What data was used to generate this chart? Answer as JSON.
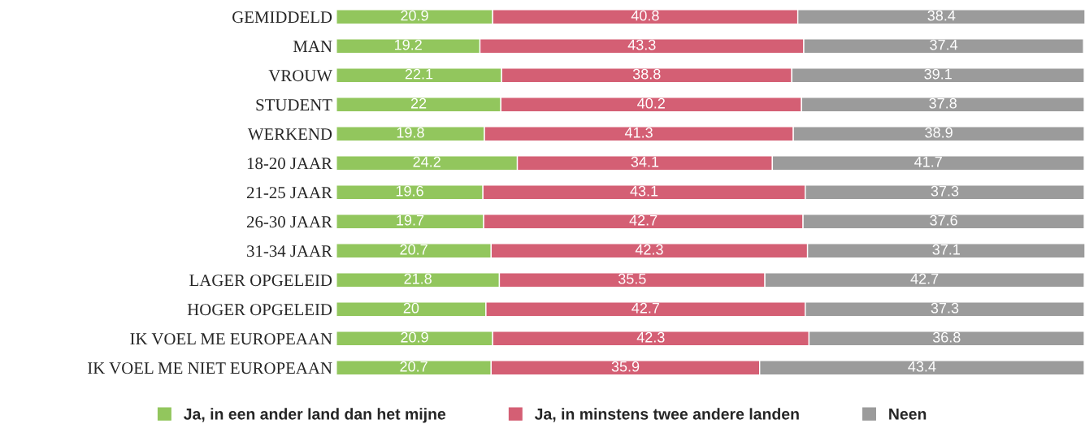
{
  "chart_data": {
    "type": "bar",
    "orientation": "horizontal",
    "stacked": true,
    "data_labels": true,
    "legend": "bottom",
    "grid": false,
    "categories": [
      "GEMIDDELD",
      "MAN",
      "VROUW",
      "STUDENT",
      "WERKEND",
      "18-20 JAAR",
      "21-25 JAAR",
      "26-30 JAAR",
      "31-34 JAAR",
      "LAGER OPGELEID",
      "HOGER OPGELEID",
      "IK VOEL ME EUROPEAAN",
      "IK VOEL ME NIET EUROPEAAN"
    ],
    "series": [
      {
        "name": "Ja, in een ander land dan het mijne",
        "color": "#92c65d",
        "values": [
          20.9,
          19.2,
          22.1,
          22,
          19.8,
          24.2,
          19.6,
          19.7,
          20.7,
          21.8,
          20,
          20.9,
          20.7
        ]
      },
      {
        "name": "Ja, in minstens twee andere landen",
        "color": "#d45f74",
        "values": [
          40.8,
          43.3,
          38.8,
          40.2,
          41.3,
          34.1,
          43.1,
          42.7,
          42.3,
          35.5,
          42.7,
          42.3,
          35.9
        ]
      },
      {
        "name": "Neen",
        "color": "#9b9b9b",
        "values": [
          38.4,
          37.4,
          39.1,
          37.8,
          38.9,
          41.7,
          37.3,
          37.6,
          37.1,
          42.7,
          37.3,
          36.8,
          43.4
        ]
      }
    ]
  }
}
